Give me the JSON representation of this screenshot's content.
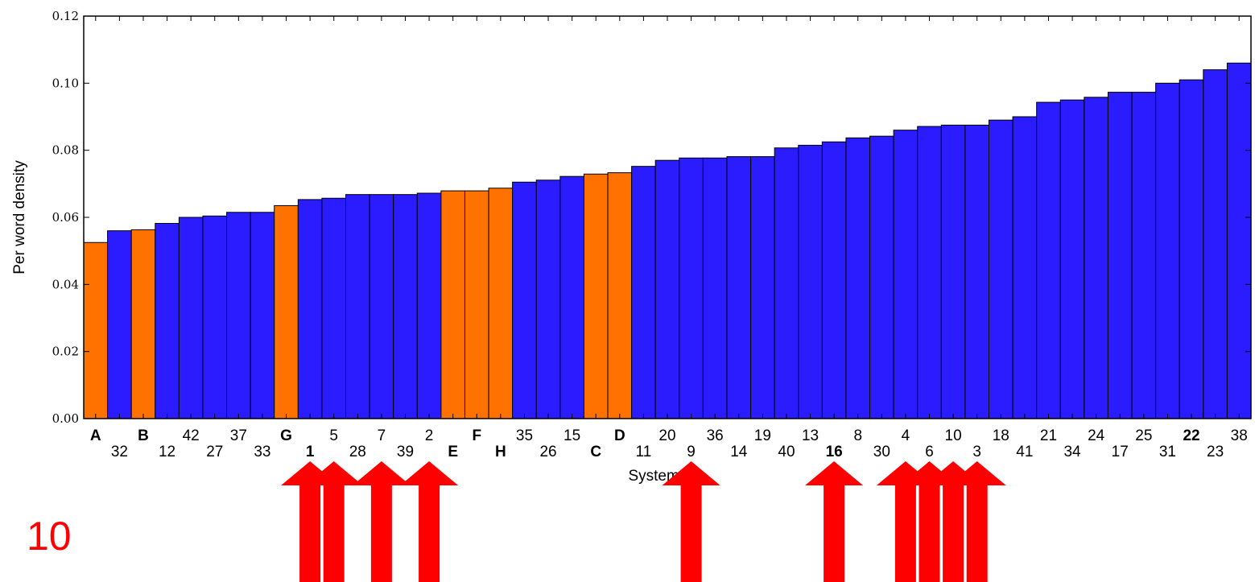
{
  "chart_data": {
    "type": "bar",
    "xlabel": "System IDs",
    "ylabel": "Per word density",
    "ylim": [
      0,
      0.12
    ],
    "yticks": [
      "0.00",
      "0.02",
      "0.04",
      "0.06",
      "0.08",
      "0.10",
      "0.12"
    ],
    "grid": false,
    "colors": {
      "highlight": "#ff7200",
      "normal": "#2a1cff",
      "arrow": "#ff0000"
    },
    "categories": [
      "A",
      "32",
      "B",
      "12",
      "42",
      "27",
      "37",
      "33",
      "G",
      "1",
      "5",
      "28",
      "7",
      "39",
      "2",
      "E",
      "F",
      "H",
      "35",
      "26",
      "15",
      "C",
      "D",
      "11",
      "20",
      "9",
      "36",
      "14",
      "19",
      "40",
      "13",
      "16",
      "8",
      "30",
      "4",
      "6",
      "10",
      "3",
      "18",
      "41",
      "21",
      "34",
      "24",
      "17",
      "25",
      "31",
      "22",
      "23",
      "38"
    ],
    "values": [
      0.0525,
      0.056,
      0.0563,
      0.0582,
      0.06,
      0.0604,
      0.0615,
      0.0615,
      0.0635,
      0.0653,
      0.0657,
      0.0668,
      0.0668,
      0.0668,
      0.0672,
      0.0679,
      0.0679,
      0.0687,
      0.0705,
      0.0711,
      0.0722,
      0.0729,
      0.0733,
      0.0752,
      0.077,
      0.0777,
      0.0777,
      0.0781,
      0.0781,
      0.0807,
      0.0815,
      0.0825,
      0.0837,
      0.0842,
      0.086,
      0.0871,
      0.0875,
      0.0875,
      0.089,
      0.09,
      0.0943,
      0.095,
      0.0958,
      0.0973,
      0.0973,
      0.1,
      0.101,
      0.104,
      0.106
    ],
    "highlighted": [
      "A",
      "B",
      "G",
      "E",
      "F",
      "H",
      "C",
      "D"
    ],
    "bold_labels": [
      "A",
      "B",
      "G",
      "1",
      "E",
      "F",
      "H",
      "C",
      "D",
      "16",
      "22"
    ],
    "arrows_under": [
      "1",
      "5",
      "7",
      "2",
      "9",
      "16",
      "4",
      "6",
      "10",
      "3"
    ]
  },
  "overlay_text": "10"
}
